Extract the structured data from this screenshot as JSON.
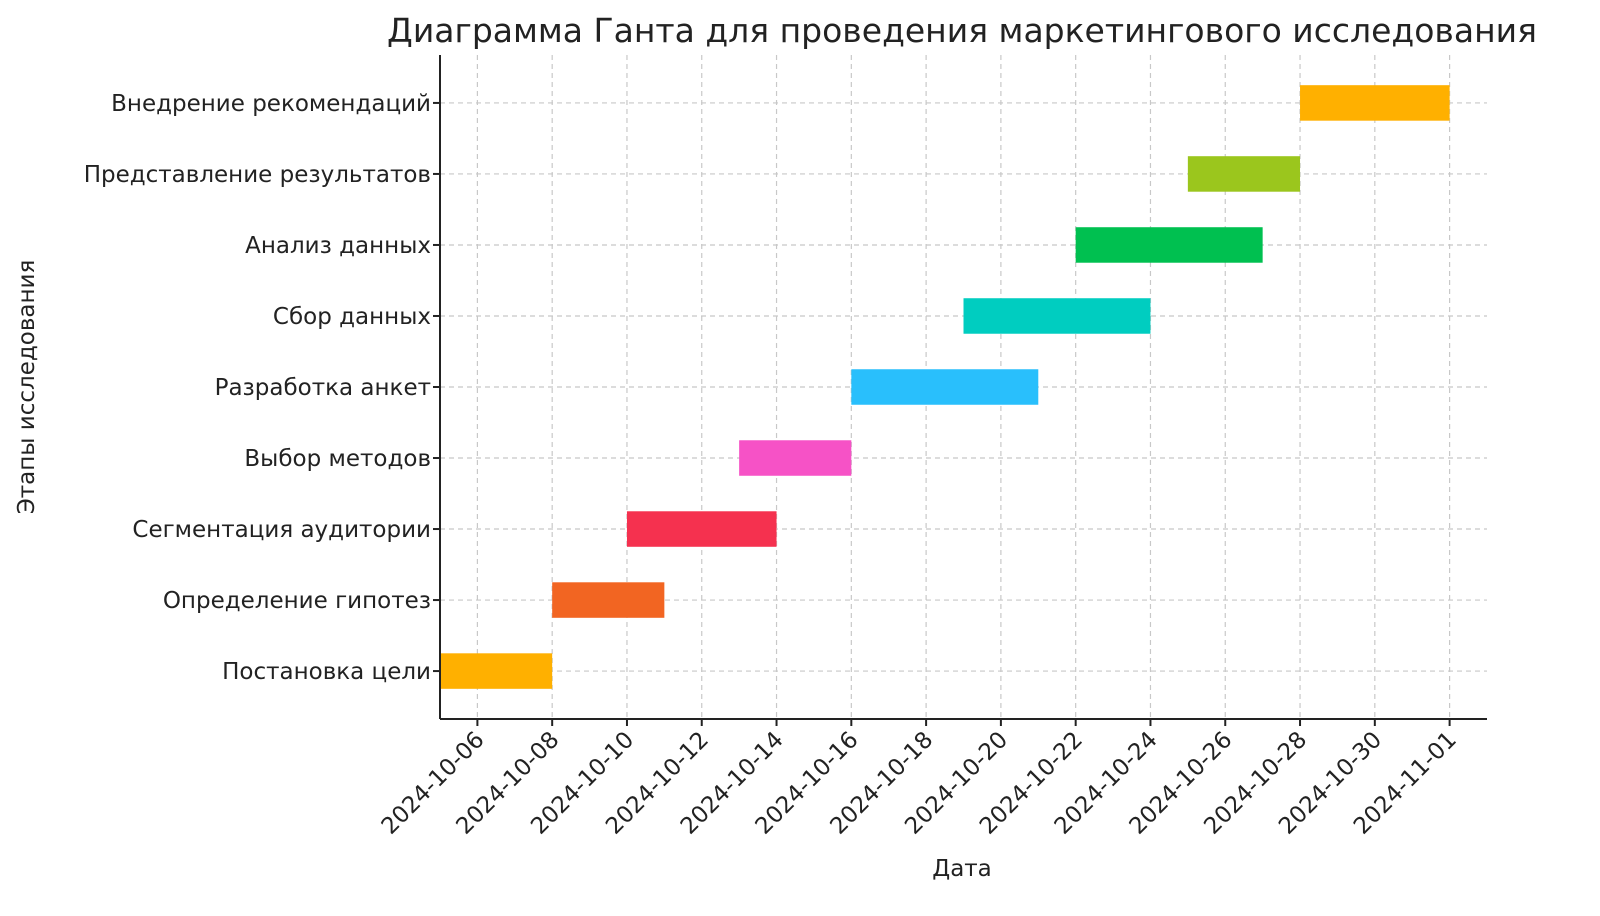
{
  "chart_data": {
    "type": "gantt",
    "title": "Диаграмма Ганта для проведения маркетингового исследования",
    "x_label": "Дата",
    "y_label": "Этапы исследования",
    "categories": [
      "Постановка цели",
      "Определение гипотез",
      "Сегментация аудитории",
      "Выбор методов",
      "Разработка анкет",
      "Сбор данных",
      "Анализ данных",
      "Представление результатов",
      "Внедрение рекомендаций"
    ],
    "start": [
      "2024-10-05",
      "2024-10-08",
      "2024-10-10",
      "2024-10-13",
      "2024-10-16",
      "2024-10-19",
      "2024-10-22",
      "2024-10-25",
      "2024-10-28"
    ],
    "end": [
      "2024-10-08",
      "2024-10-11",
      "2024-10-14",
      "2024-10-16",
      "2024-10-21",
      "2024-10-24",
      "2024-10-27",
      "2024-10-28",
      "2024-11-01"
    ],
    "colors": [
      "#ffb000",
      "#f26522",
      "#f5314f",
      "#f652c6",
      "#29bffc",
      "#00cdc0",
      "#00c050",
      "#9bc61d",
      "#ffb000"
    ],
    "xlim": [
      "2024-10-05",
      "2024-11-02"
    ],
    "xticks": [
      "2024-10-06",
      "2024-10-08",
      "2024-10-10",
      "2024-10-12",
      "2024-10-14",
      "2024-10-16",
      "2024-10-18",
      "2024-10-20",
      "2024-10-22",
      "2024-10-24",
      "2024-10-26",
      "2024-10-28",
      "2024-10-30",
      "2024-11-01"
    ],
    "grid": true
  }
}
